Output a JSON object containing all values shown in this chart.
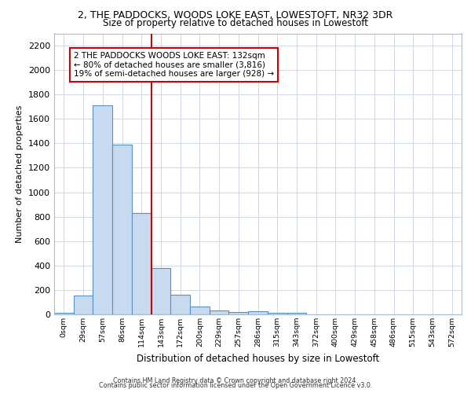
{
  "title1": "2, THE PADDOCKS, WOODS LOKE EAST, LOWESTOFT, NR32 3DR",
  "title2": "Size of property relative to detached houses in Lowestoft",
  "xlabel": "Distribution of detached houses by size in Lowestoft",
  "ylabel": "Number of detached properties",
  "categories": [
    "0sqm",
    "29sqm",
    "57sqm",
    "86sqm",
    "114sqm",
    "143sqm",
    "172sqm",
    "200sqm",
    "229sqm",
    "257sqm",
    "286sqm",
    "315sqm",
    "343sqm",
    "372sqm",
    "400sqm",
    "429sqm",
    "458sqm",
    "486sqm",
    "515sqm",
    "543sqm",
    "572sqm"
  ],
  "values": [
    15,
    155,
    1710,
    1390,
    830,
    380,
    160,
    65,
    30,
    20,
    25,
    10,
    10,
    0,
    0,
    0,
    0,
    0,
    0,
    0,
    0
  ],
  "bar_color": "#c8daf0",
  "bar_edge_color": "#5590c8",
  "vline_x": 5,
  "vline_color": "#cc0000",
  "annotation_text": "2 THE PADDOCKS WOODS LOKE EAST: 132sqm\n← 80% of detached houses are smaller (3,816)\n19% of semi-detached houses are larger (928) →",
  "annotation_box_color": "#ffffff",
  "annotation_border_color": "#cc0000",
  "ylim": [
    0,
    2300
  ],
  "yticks": [
    0,
    200,
    400,
    600,
    800,
    1000,
    1200,
    1400,
    1600,
    1800,
    2000,
    2200
  ],
  "footer1": "Contains HM Land Registry data © Crown copyright and database right 2024.",
  "footer2": "Contains public sector information licensed under the Open Government Licence v3.0.",
  "bg_color": "#ffffff",
  "plot_bg_color": "#ffffff",
  "grid_color": "#d0d8e8"
}
